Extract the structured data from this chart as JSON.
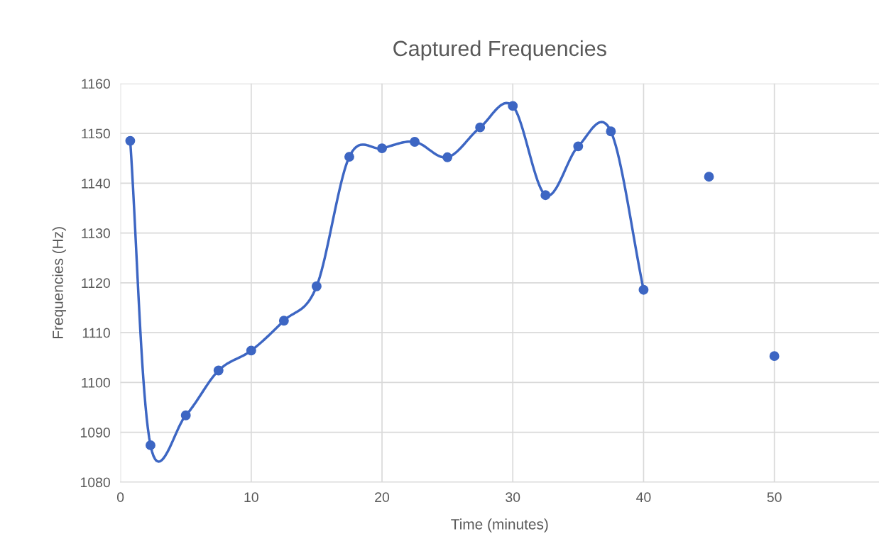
{
  "chart_data": {
    "type": "line",
    "title": "Captured Frequencies",
    "xlabel": "Time (minutes)",
    "ylabel": "Frequencies (Hz)",
    "x": [
      0.75,
      2.3,
      5,
      7.5,
      10,
      12.5,
      15,
      17.5,
      20,
      22.5,
      25,
      27.5,
      30,
      32.5,
      35,
      37.5,
      40,
      42.5,
      45,
      47.5,
      50
    ],
    "series": [
      {
        "color": "#3d66c3",
        "values": [
          1148.5,
          1087.4,
          1093.4,
          1102.4,
          1106.4,
          1112.4,
          1119.3,
          1145.3,
          1147.0,
          1148.3,
          1145.2,
          1151.2,
          1155.5,
          1137.6,
          1147.4,
          1150.4,
          1118.6,
          null,
          1141.3,
          null,
          1105.3
        ]
      }
    ],
    "xlim": [
      0,
      58
    ],
    "xticks": [
      0,
      10,
      20,
      30,
      40,
      50
    ],
    "ylim": [
      1080,
      1160
    ],
    "yticks": [
      1080,
      1090,
      1100,
      1110,
      1120,
      1130,
      1140,
      1150,
      1160
    ],
    "grid": true,
    "marker": "circle",
    "line_style": "solid"
  }
}
